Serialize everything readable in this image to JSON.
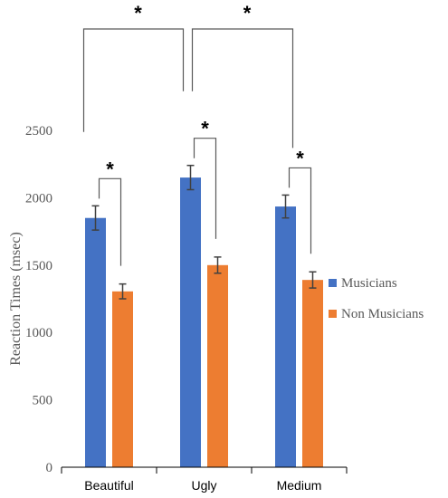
{
  "chart_data": {
    "type": "bar",
    "categories": [
      "Beautiful",
      "Ugly",
      "Medium"
    ],
    "series": [
      {
        "name": "Musicians",
        "values": [
          1850,
          2150,
          1935
        ],
        "errors": [
          90,
          90,
          85
        ],
        "color": "#4472C4"
      },
      {
        "name": "Non Musicians",
        "values": [
          1305,
          1500,
          1390
        ],
        "errors": [
          55,
          60,
          60
        ],
        "color": "#ED7D31"
      }
    ],
    "ylabel": "Reaction Times (msec)",
    "ylim": [
      0,
      2500
    ],
    "yticks": [
      "0",
      "500",
      "1000",
      "1500",
      "2000",
      "2500"
    ],
    "grid": false,
    "legend_position": "right",
    "significance_marker": "*"
  }
}
